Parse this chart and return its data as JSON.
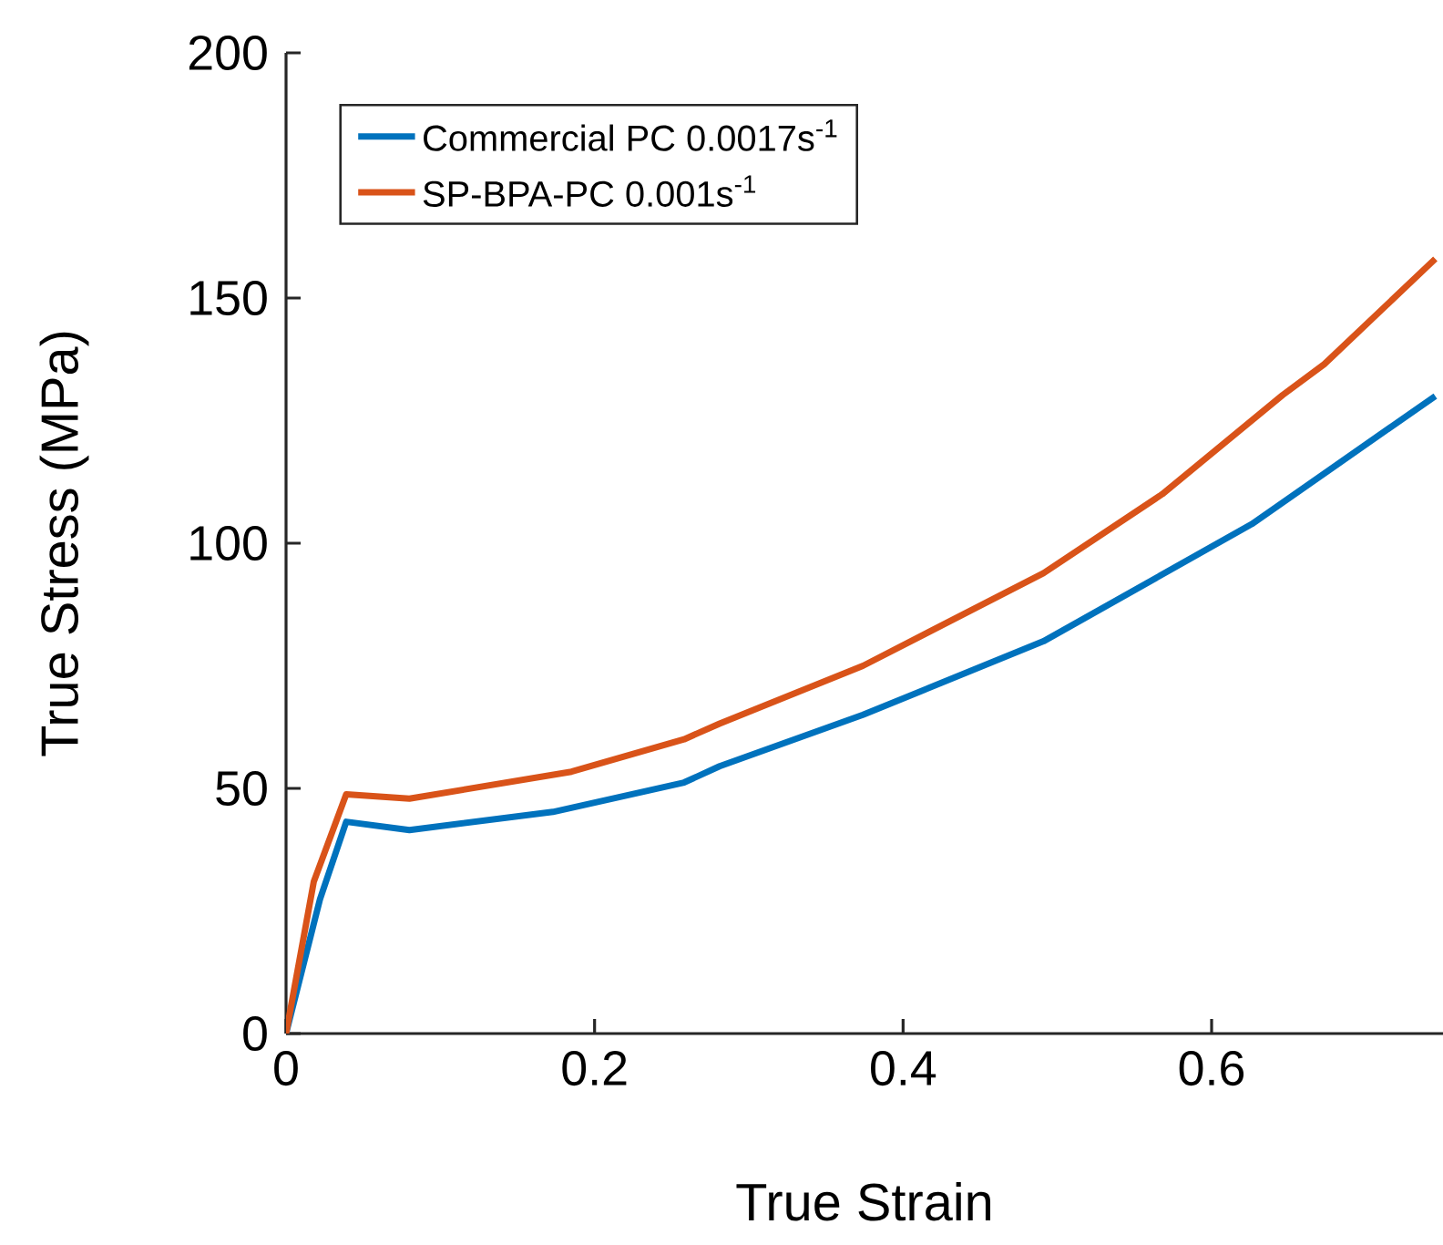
{
  "chart_data": {
    "type": "line",
    "xlabel": "True Strain",
    "ylabel": "True Stress (MPa)",
    "xlim": [
      0,
      0.75
    ],
    "ylim": [
      0,
      200
    ],
    "xticks": [
      0,
      0.2,
      0.4,
      0.6
    ],
    "yticks": [
      0,
      50,
      100,
      150,
      200
    ],
    "grid": false,
    "legend": "top left",
    "line_style": "solid",
    "marker": "none",
    "series": [
      {
        "name": "Commercial PC 0.0017s$^{-1}$",
        "color": "#0072bd",
        "x": [
          0,
          0.022,
          0.039,
          0.08,
          0.173,
          0.258,
          0.281,
          0.374,
          0.491,
          0.626,
          0.745
        ],
        "values": [
          0,
          27.4,
          43.2,
          41.5,
          45.2,
          51.2,
          54.5,
          65,
          80,
          103.9,
          130
        ]
      },
      {
        "name": "SP-BPA-PC 0.001s$^{-1}$",
        "color": "#d95319",
        "x": [
          0,
          0.018,
          0.039,
          0.08,
          0.185,
          0.258,
          0.281,
          0.374,
          0.491,
          0.568,
          0.646,
          0.673,
          0.745
        ],
        "values": [
          0,
          31,
          48.8,
          47.9,
          53.4,
          60,
          63.2,
          75,
          93.9,
          110,
          130.2,
          136.5,
          158
        ]
      }
    ]
  }
}
